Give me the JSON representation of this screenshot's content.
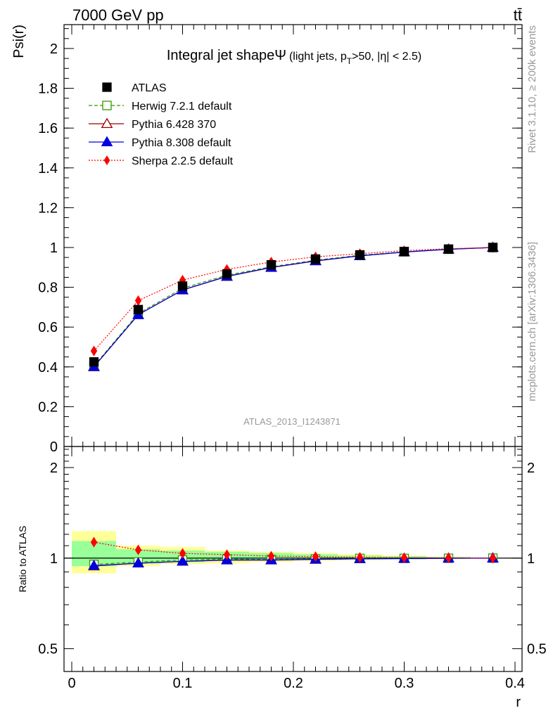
{
  "header": {
    "energy": "7000 GeV pp",
    "process": "tt̄",
    "title_main": "Integral jet shape",
    "title_psi": "Ψ",
    "title_cut1": "(light jets, p",
    "title_cut_sub": "T",
    "title_cut2": ">50, |η| < 2.5)",
    "watermark": "ATLAS_2013_I1243871",
    "side_rivet": "Rivet 3.1.10, ≥ 200k events",
    "side_mcplots": "mcplots.cern.ch [arXiv:1306.3436]"
  },
  "colors": {
    "atlas": "#000000",
    "herwig": "#339900",
    "pythia6": "#990000",
    "pythia8": "#0000dd",
    "sherpa": "#ff0000",
    "band_stat": "#99ff99",
    "band_total": "#ffff99"
  },
  "chart_data": [
    {
      "type": "line",
      "xlabel": "r",
      "ylabel": "Psi(r)",
      "xlim": [
        0,
        0.4
      ],
      "ylim": [
        0,
        2.12
      ],
      "x_ticks": [
        0,
        0.1,
        0.2,
        0.3,
        0.4
      ],
      "x_tick_labels": [
        "0",
        "0.1",
        "0.2",
        "0.3",
        "0.4"
      ],
      "y_ticks": [
        0,
        0.2,
        0.4,
        0.6,
        0.8,
        1,
        1.2,
        1.4,
        1.6,
        1.8,
        2
      ],
      "y_tick_labels": [
        "0",
        "0.2",
        "0.4",
        "0.6",
        "0.8",
        "1",
        "1.2",
        "1.4",
        "1.6",
        "1.8",
        "2"
      ],
      "legend_position": "top-left",
      "x": [
        0.02,
        0.06,
        0.1,
        0.14,
        0.18,
        0.22,
        0.26,
        0.3,
        0.34,
        0.38
      ],
      "x_edges": [
        0,
        0.04,
        0.08,
        0.12,
        0.16,
        0.2,
        0.24,
        0.28,
        0.32,
        0.36,
        0.4
      ],
      "series": [
        {
          "name": "ATLAS",
          "key": "atlas",
          "marker": "square-filled",
          "line": "none",
          "values": [
            0.425,
            0.688,
            0.806,
            0.867,
            0.913,
            0.942,
            0.963,
            0.98,
            0.992,
            1.0
          ]
        },
        {
          "name": "Herwig 7.2.1 default",
          "key": "herwig",
          "marker": "square-open",
          "line": "dashed",
          "values": [
            0.405,
            0.668,
            0.795,
            0.861,
            0.903,
            0.936,
            0.961,
            0.978,
            0.991,
            1.0
          ]
        },
        {
          "name": "Pythia 6.428 370",
          "key": "pythia6",
          "marker": "triangle-open",
          "line": "solid",
          "values": [
            0.4,
            0.662,
            0.786,
            0.854,
            0.899,
            0.932,
            0.958,
            0.977,
            0.991,
            1.0
          ]
        },
        {
          "name": "Pythia 8.308 default",
          "key": "pythia8",
          "marker": "triangle-filled",
          "line": "solid",
          "values": [
            0.401,
            0.662,
            0.787,
            0.855,
            0.9,
            0.933,
            0.958,
            0.977,
            0.991,
            1.0
          ]
        },
        {
          "name": "Sherpa 2.2.5 default",
          "key": "sherpa",
          "marker": "diamond-filled",
          "line": "dotted",
          "values": [
            0.48,
            0.733,
            0.836,
            0.89,
            0.927,
            0.953,
            0.969,
            0.984,
            0.994,
            1.0
          ]
        }
      ]
    },
    {
      "type": "line",
      "xlabel": "r",
      "ylabel": "Ratio to ATLAS",
      "xlim": [
        0,
        0.4
      ],
      "ylim": [
        0.42,
        2.35
      ],
      "scale": "log",
      "y_ticks": [
        0.5,
        1,
        2
      ],
      "y_tick_labels": [
        "0.5",
        "1",
        "2"
      ],
      "x": [
        0.02,
        0.06,
        0.1,
        0.14,
        0.18,
        0.22,
        0.26,
        0.3,
        0.34,
        0.38
      ],
      "band_stat": [
        [
          0.94,
          1.14
        ],
        [
          0.96,
          1.07
        ],
        [
          0.97,
          1.06
        ],
        [
          0.98,
          1.05
        ],
        [
          0.985,
          1.04
        ],
        [
          0.99,
          1.03
        ],
        [
          0.99,
          1.02
        ],
        [
          0.99,
          1.015
        ],
        [
          0.995,
          1.01
        ],
        [
          0.998,
          1.003
        ]
      ],
      "band_total": [
        [
          0.89,
          1.23
        ],
        [
          0.94,
          1.1
        ],
        [
          0.955,
          1.09
        ],
        [
          0.96,
          1.06
        ],
        [
          0.97,
          1.05
        ],
        [
          0.98,
          1.04
        ],
        [
          0.985,
          1.03
        ],
        [
          0.99,
          1.02
        ],
        [
          0.995,
          1.01
        ],
        [
          0.998,
          1.004
        ]
      ],
      "series": [
        {
          "name": "Herwig 7.2.1 default",
          "key": "herwig",
          "values": [
            0.953,
            0.971,
            0.986,
            0.993,
            0.989,
            0.994,
            0.998,
            0.998,
            0.999,
            1.0
          ]
        },
        {
          "name": "Pythia 6.428 370",
          "key": "pythia6",
          "values": [
            0.941,
            0.962,
            0.975,
            0.985,
            0.985,
            0.99,
            0.995,
            0.997,
            0.999,
            1.0
          ]
        },
        {
          "name": "Pythia 8.308 default",
          "key": "pythia8",
          "values": [
            0.944,
            0.962,
            0.976,
            0.986,
            0.986,
            0.991,
            0.995,
            0.997,
            0.999,
            1.0
          ]
        },
        {
          "name": "Sherpa 2.2.5 default",
          "key": "sherpa",
          "values": [
            1.13,
            1.065,
            1.037,
            1.027,
            1.015,
            1.012,
            1.006,
            1.004,
            1.002,
            1.0
          ]
        }
      ]
    }
  ]
}
